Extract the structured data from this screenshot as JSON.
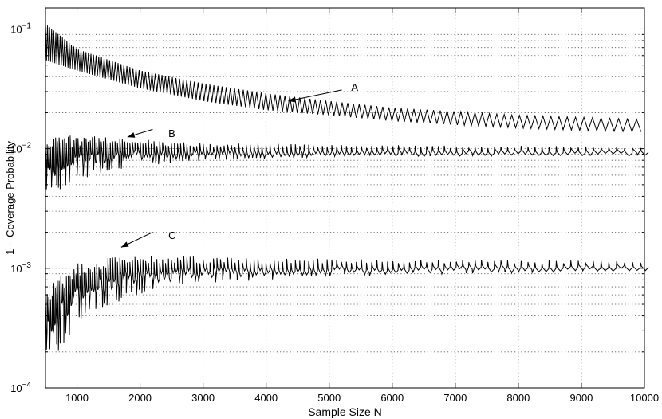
{
  "chart_data": {
    "type": "line",
    "title": "",
    "xlabel": "Sample Size N",
    "ylabel": "1 − Coverage Probability",
    "xlim": [
      500,
      10000
    ],
    "ylim": [
      0.0001,
      0.15
    ],
    "yscale": "log",
    "grid": true,
    "x_ticks": [
      1000,
      2000,
      3000,
      4000,
      5000,
      6000,
      7000,
      8000,
      9000,
      10000
    ],
    "x_tick_labels": [
      "1000",
      "2000",
      "3000",
      "4000",
      "5000",
      "6000",
      "7000",
      "8000",
      "9000",
      "10000"
    ],
    "y_ticks": [
      0.0001,
      0.001,
      0.01,
      0.1
    ],
    "y_tick_labels": [
      {
        "base": "10",
        "exp": "−4"
      },
      {
        "base": "10",
        "exp": "−3"
      },
      {
        "base": "10",
        "exp": "−2"
      },
      {
        "base": "10",
        "exp": "−1"
      }
    ],
    "series": [
      {
        "color": "#000000",
        "sawtooth": "regular",
        "points": [
          {
            "x": 500,
            "low": 0.055,
            "high": 0.11
          },
          {
            "x": 1000,
            "low": 0.045,
            "high": 0.068
          },
          {
            "x": 2000,
            "low": 0.032,
            "high": 0.045
          },
          {
            "x": 3000,
            "low": 0.025,
            "high": 0.035
          },
          {
            "x": 4000,
            "low": 0.021,
            "high": 0.029
          },
          {
            "x": 5000,
            "low": 0.019,
            "high": 0.025
          },
          {
            "x": 6000,
            "low": 0.017,
            "high": 0.022
          },
          {
            "x": 7000,
            "low": 0.0158,
            "high": 0.0205
          },
          {
            "x": 8000,
            "low": 0.0149,
            "high": 0.019
          },
          {
            "x": 9000,
            "low": 0.0142,
            "high": 0.0183
          },
          {
            "x": 10000,
            "low": 0.0138,
            "high": 0.0175
          }
        ]
      },
      {
        "color": "#000000",
        "sawtooth": "irregular",
        "points": [
          {
            "x": 500,
            "low": 0.0045,
            "high": 0.012
          },
          {
            "x": 700,
            "low": 0.0042,
            "high": 0.013
          },
          {
            "x": 1000,
            "low": 0.0055,
            "high": 0.013
          },
          {
            "x": 1500,
            "low": 0.0065,
            "high": 0.0125
          },
          {
            "x": 2000,
            "low": 0.0072,
            "high": 0.012
          },
          {
            "x": 3000,
            "low": 0.008,
            "high": 0.0112
          },
          {
            "x": 5000,
            "low": 0.0085,
            "high": 0.0108
          },
          {
            "x": 7000,
            "low": 0.0087,
            "high": 0.0106
          },
          {
            "x": 10000,
            "low": 0.0088,
            "high": 0.0105
          }
        ]
      },
      {
        "color": "#000000",
        "sawtooth": "irregular",
        "points": [
          {
            "x": 500,
            "low": 0.00018,
            "high": 0.0006
          },
          {
            "x": 700,
            "low": 0.0002,
            "high": 0.0009
          },
          {
            "x": 1000,
            "low": 0.00035,
            "high": 0.0011
          },
          {
            "x": 1500,
            "low": 0.0005,
            "high": 0.0013
          },
          {
            "x": 2000,
            "low": 0.0006,
            "high": 0.0013
          },
          {
            "x": 3000,
            "low": 0.00075,
            "high": 0.00125
          },
          {
            "x": 5000,
            "low": 0.00085,
            "high": 0.0012
          },
          {
            "x": 7000,
            "low": 0.0009,
            "high": 0.00118
          },
          {
            "x": 10000,
            "low": 0.00095,
            "high": 0.00115
          }
        ]
      }
    ],
    "annotations": [
      {
        "text": "A",
        "text_x": 5350,
        "text_y": 0.033,
        "arrow_from_x": 5200,
        "arrow_from_y": 0.031,
        "arrow_to_x": 4350,
        "arrow_to_y": 0.025
      },
      {
        "text": "B",
        "text_x": 2450,
        "text_y": 0.0135,
        "arrow_from_x": 2200,
        "arrow_from_y": 0.0145,
        "arrow_to_x": 1800,
        "arrow_to_y": 0.0125
      },
      {
        "text": "C",
        "text_x": 2450,
        "text_y": 0.0019,
        "arrow_from_x": 2200,
        "arrow_from_y": 0.002,
        "arrow_to_x": 1700,
        "arrow_to_y": 0.0015
      }
    ]
  }
}
